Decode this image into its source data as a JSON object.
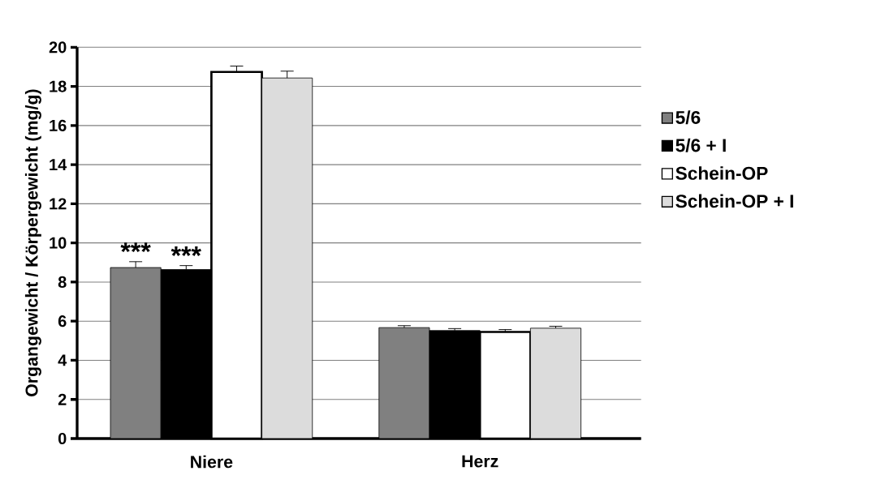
{
  "chart_data": {
    "type": "bar",
    "ylabel": "Organgewicht / Körpergewicht (mg/g)",
    "categories": [
      "Niere",
      "Herz"
    ],
    "series": [
      {
        "name": "5/6",
        "color": "#808080",
        "values": [
          8.74,
          5.67
        ],
        "errors": [
          0.3,
          0.1
        ]
      },
      {
        "name": "5/6 + I",
        "color": "#000000",
        "values": [
          8.64,
          5.52
        ],
        "errors": [
          0.2,
          0.1
        ]
      },
      {
        "name": "Schein-OP",
        "color": "#ffffff",
        "values": [
          18.74,
          5.45
        ],
        "errors": [
          0.3,
          0.12
        ]
      },
      {
        "name": "Schein-OP + I",
        "color": "#dcdcdc",
        "values": [
          18.43,
          5.64
        ],
        "errors": [
          0.35,
          0.1
        ]
      }
    ],
    "annotations": [
      "***",
      "***"
    ],
    "ylim": [
      0,
      20
    ],
    "yticks": [
      0,
      2,
      4,
      6,
      8,
      10,
      12,
      14,
      16,
      18,
      20
    ],
    "grid": "y",
    "legend": "right"
  }
}
